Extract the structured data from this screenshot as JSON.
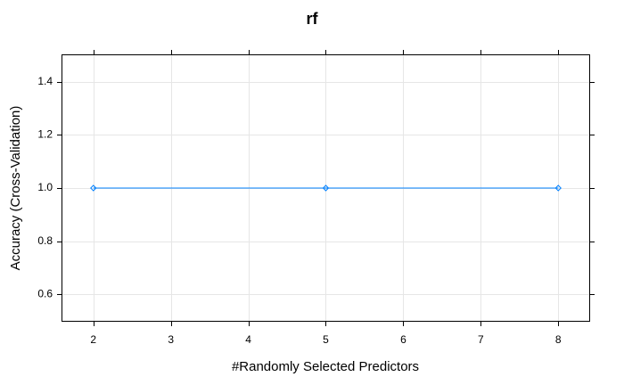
{
  "chart_data": {
    "type": "line",
    "title": "rf",
    "xlabel": "#Randomly Selected Predictors",
    "ylabel": "Accuracy (Cross-Validation)",
    "xlim": [
      1.6,
      8.4
    ],
    "ylim": [
      0.5,
      1.5
    ],
    "x_ticks": [
      2,
      3,
      4,
      5,
      6,
      7,
      8
    ],
    "y_ticks": [
      0.6,
      0.8,
      1.0,
      1.2,
      1.4
    ],
    "y_tick_labels": [
      "0.6",
      "0.8",
      "1.0",
      "1.2",
      "1.4"
    ],
    "x": [
      2,
      5,
      8
    ],
    "series": [
      {
        "values": [
          1.0,
          1.0,
          1.0
        ],
        "color": "#0080ff",
        "marker": "diamond-open"
      }
    ],
    "grid": true
  }
}
